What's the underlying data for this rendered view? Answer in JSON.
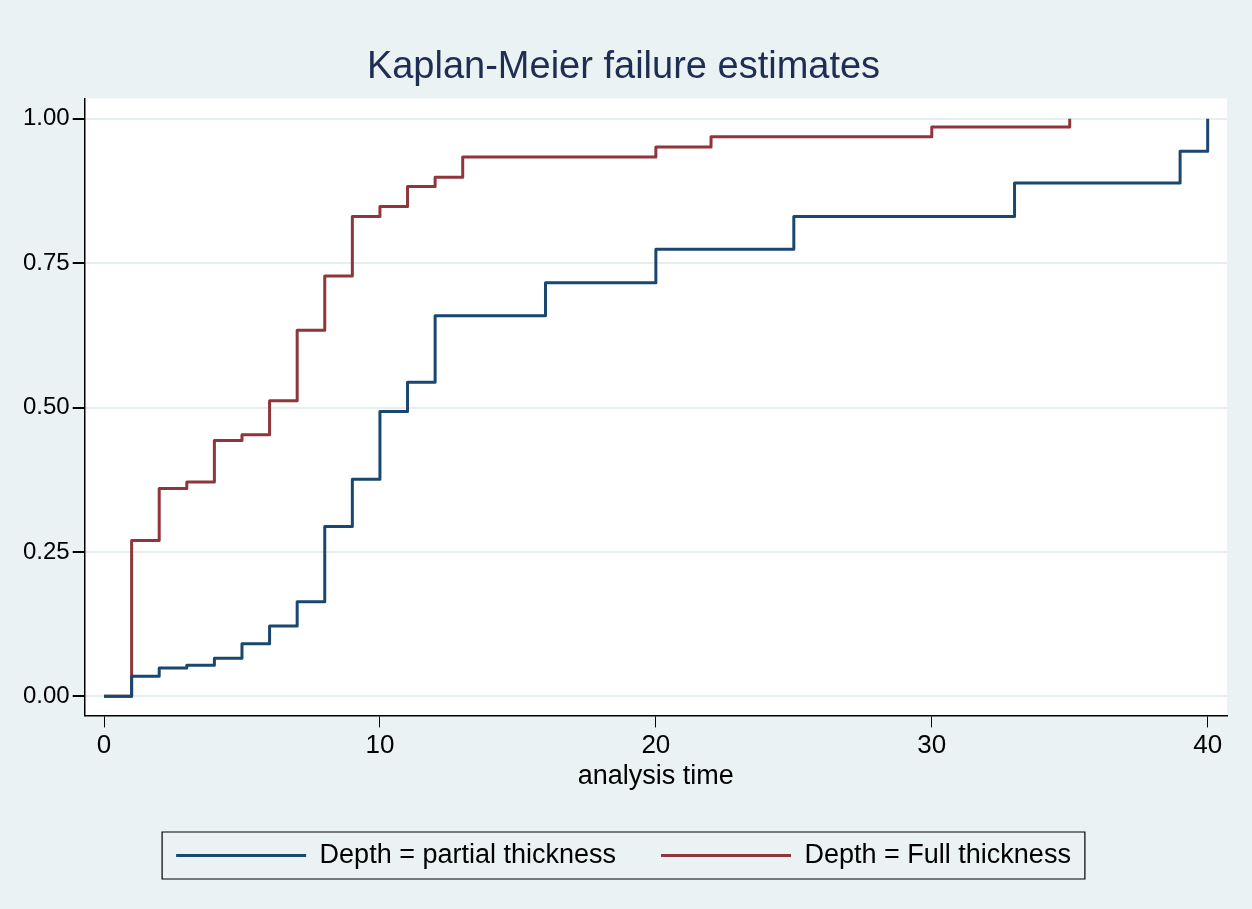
{
  "chart_data": {
    "type": "step",
    "title": "Kaplan-Meier failure estimates",
    "xlabel": "analysis time",
    "xlim": [
      -0.7,
      40.7
    ],
    "xticks": [
      0,
      10,
      20,
      30,
      40
    ],
    "ylim": [
      -0.033,
      1.035
    ],
    "yticks": [
      {
        "value": 0,
        "label": "0.00"
      },
      {
        "value": 0.25,
        "label": "0.25"
      },
      {
        "value": 0.5,
        "label": "0.50"
      },
      {
        "value": 0.75,
        "label": "0.75"
      },
      {
        "value": 1,
        "label": "1.00"
      }
    ],
    "grid": "y",
    "legend": "bottom",
    "marker": "none",
    "line_style": "solid",
    "series": [
      {
        "name": "Depth = partial thickness",
        "color": "#1a476f",
        "x": [
          0,
          1,
          2,
          3,
          4,
          5,
          6,
          7,
          8,
          9,
          10,
          11,
          12,
          16,
          20,
          25,
          33,
          39,
          40
        ],
        "values": [
          0,
          0.035,
          0.049,
          0.054,
          0.066,
          0.091,
          0.122,
          0.164,
          0.294,
          0.376,
          0.493,
          0.544,
          0.659,
          0.716,
          0.774,
          0.831,
          0.889,
          0.944,
          1.0
        ]
      },
      {
        "name": "Depth = Full thickness",
        "color": "#90353b",
        "x": [
          0,
          1,
          2,
          3,
          4,
          5,
          6,
          7,
          8,
          9,
          10,
          11,
          12,
          13,
          20,
          22,
          30,
          35
        ],
        "values": [
          0,
          0.27,
          0.36,
          0.371,
          0.443,
          0.453,
          0.512,
          0.634,
          0.728,
          0.831,
          0.848,
          0.883,
          0.899,
          0.934,
          0.951,
          0.969,
          0.986,
          1.0
        ]
      }
    ]
  }
}
